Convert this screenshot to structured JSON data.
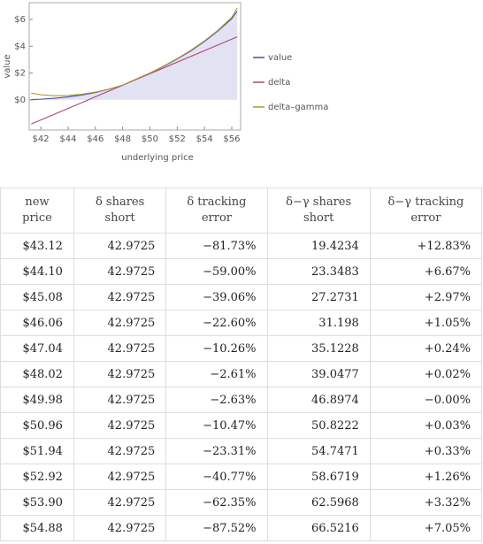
{
  "chart_data": {
    "type": "line",
    "x_label": "underlying price",
    "y_label": "value",
    "x": [
      41.3,
      42,
      43,
      44,
      45,
      46,
      47,
      48,
      49,
      50,
      51,
      52,
      53,
      54,
      55,
      56,
      56.4
    ],
    "series": [
      {
        "name": "value",
        "color": "#4b4ba6",
        "fill": "#e2e2f2",
        "values": [
          0.02,
          0.05,
          0.12,
          0.22,
          0.36,
          0.55,
          0.8,
          1.1,
          1.55,
          2.0,
          2.5,
          3.05,
          3.65,
          4.35,
          5.15,
          6.05,
          6.62
        ]
      },
      {
        "name": "delta",
        "color": "#b3437a",
        "values": [
          -1.8,
          -1.5,
          -1.07,
          -0.64,
          -0.21,
          0.23,
          0.66,
          1.09,
          1.52,
          1.95,
          2.38,
          2.81,
          3.24,
          3.67,
          4.1,
          4.53,
          4.7
        ]
      },
      {
        "name": "delta–gamma",
        "color": "#a89a2c",
        "values": [
          0.5,
          0.38,
          0.3,
          0.33,
          0.42,
          0.58,
          0.8,
          1.1,
          1.55,
          2.0,
          2.52,
          3.08,
          3.7,
          4.4,
          5.2,
          6.15,
          6.85
        ]
      }
    ],
    "xlim": [
      41.15,
      56.65
    ],
    "ylim": [
      -2.25,
      7.25
    ],
    "xticks": [
      {
        "value": 42,
        "label": "$42"
      },
      {
        "value": 44,
        "label": "$44"
      },
      {
        "value": 46,
        "label": "$46"
      },
      {
        "value": 48,
        "label": "$48"
      },
      {
        "value": 50,
        "label": "$50"
      },
      {
        "value": 52,
        "label": "$52"
      },
      {
        "value": 54,
        "label": "$54"
      },
      {
        "value": 56,
        "label": "$56"
      }
    ],
    "yticks": [
      {
        "value": 0,
        "label": "$0"
      },
      {
        "value": 2,
        "label": "$2"
      },
      {
        "value": 4,
        "label": "$4"
      },
      {
        "value": 6,
        "label": "$6"
      }
    ],
    "legend": "right"
  },
  "table": {
    "header": [
      "new price",
      "δ shares short",
      "δ tracking error",
      "δ−γ shares short",
      "δ−γ tracking error"
    ],
    "rows": [
      [
        "$43.12",
        "42.9725",
        "−81.73%",
        "19.4234",
        "+12.83%"
      ],
      [
        "$44.10",
        "42.9725",
        "−59.00%",
        "23.3483",
        "+6.67%"
      ],
      [
        "$45.08",
        "42.9725",
        "−39.06%",
        "27.2731",
        "+2.97%"
      ],
      [
        "$46.06",
        "42.9725",
        "−22.60%",
        "31.198",
        "+1.05%"
      ],
      [
        "$47.04",
        "42.9725",
        "−10.26%",
        "35.1228",
        "+0.24%"
      ],
      [
        "$48.02",
        "42.9725",
        "−2.61%",
        "39.0477",
        "+0.02%"
      ],
      [
        "$49.98",
        "42.9725",
        "−2.63%",
        "46.8974",
        "−0.00%"
      ],
      [
        "$50.96",
        "42.9725",
        "−10.47%",
        "50.8222",
        "+0.03%"
      ],
      [
        "$51.94",
        "42.9725",
        "−23.31%",
        "54.7471",
        "+0.33%"
      ],
      [
        "$52.92",
        "42.9725",
        "−40.77%",
        "58.6719",
        "+1.26%"
      ],
      [
        "$53.90",
        "42.9725",
        "−62.35%",
        "62.5968",
        "+3.32%"
      ],
      [
        "$54.88",
        "42.9725",
        "−87.52%",
        "66.5216",
        "+7.05%"
      ]
    ]
  }
}
